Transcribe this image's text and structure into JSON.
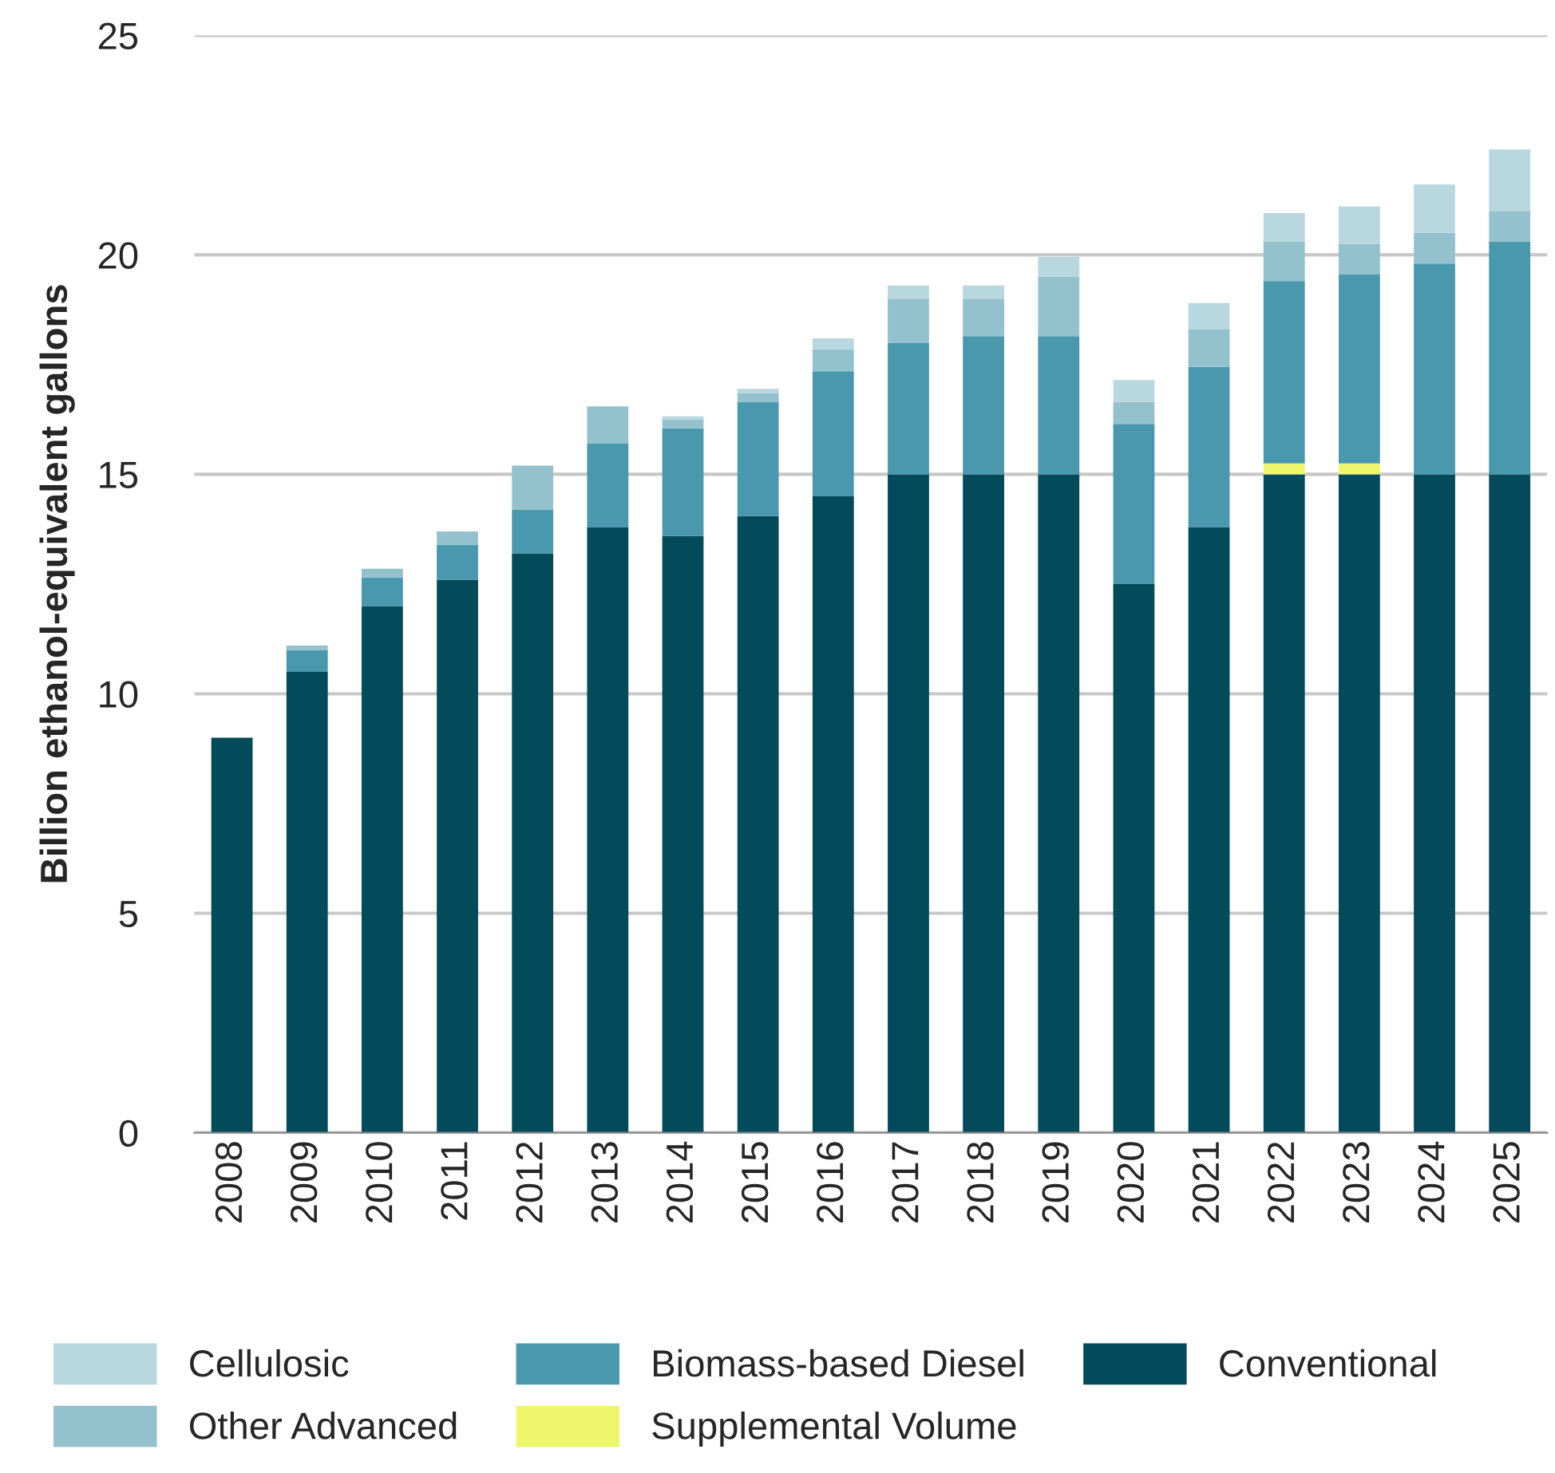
{
  "chart_data": {
    "type": "bar",
    "stacked": true,
    "ylabel": "Billion ethanol-equivalent gallons",
    "categories": [
      "2008",
      "2009",
      "2010",
      "2011",
      "2012",
      "2013",
      "2014",
      "2015",
      "2016",
      "2017",
      "2018",
      "2019",
      "2020",
      "2021",
      "2022",
      "2023",
      "2024",
      "2025"
    ],
    "series": [
      {
        "name": "Conventional",
        "color": "#034a5a",
        "values": [
          9.0,
          10.5,
          12.0,
          12.6,
          13.2,
          13.8,
          13.6,
          14.05,
          14.5,
          15,
          15,
          15,
          12.5,
          13.8,
          15,
          15,
          15,
          15
        ]
      },
      {
        "name": "Supplemental Volume",
        "color": "#eef66c",
        "values": [
          0,
          0,
          0,
          0,
          0,
          0,
          0,
          0,
          0,
          0,
          0,
          0,
          0,
          0,
          0.25,
          0.25,
          0,
          0
        ]
      },
      {
        "name": "Biomass-based Diesel",
        "color": "#4a98ad",
        "values": [
          0,
          0.5,
          0.65,
          0.8,
          1.0,
          1.9,
          2.45,
          2.6,
          2.85,
          3.0,
          3.15,
          3.15,
          3.65,
          3.65,
          4.15,
          4.3,
          4.8,
          5.3
        ]
      },
      {
        "name": "Other Advanced",
        "color": "#94c1ce",
        "values": [
          0,
          0.1,
          0.2,
          0.3,
          1.0,
          0.85,
          0.2,
          0.2,
          0.5,
          1.0,
          0.85,
          1.35,
          0.5,
          0.85,
          0.9,
          0.7,
          0.7,
          0.7
        ]
      },
      {
        "name": "Cellulosic",
        "color": "#b8d7df",
        "values": [
          0,
          0,
          0,
          0,
          0,
          0,
          0.07,
          0.1,
          0.25,
          0.3,
          0.3,
          0.45,
          0.5,
          0.6,
          0.65,
          0.85,
          1.1,
          1.4
        ]
      }
    ],
    "ylim": [
      0,
      25
    ],
    "yticks": [
      0,
      5,
      10,
      15,
      20,
      25
    ],
    "grid": "y",
    "legend": "bottom"
  }
}
